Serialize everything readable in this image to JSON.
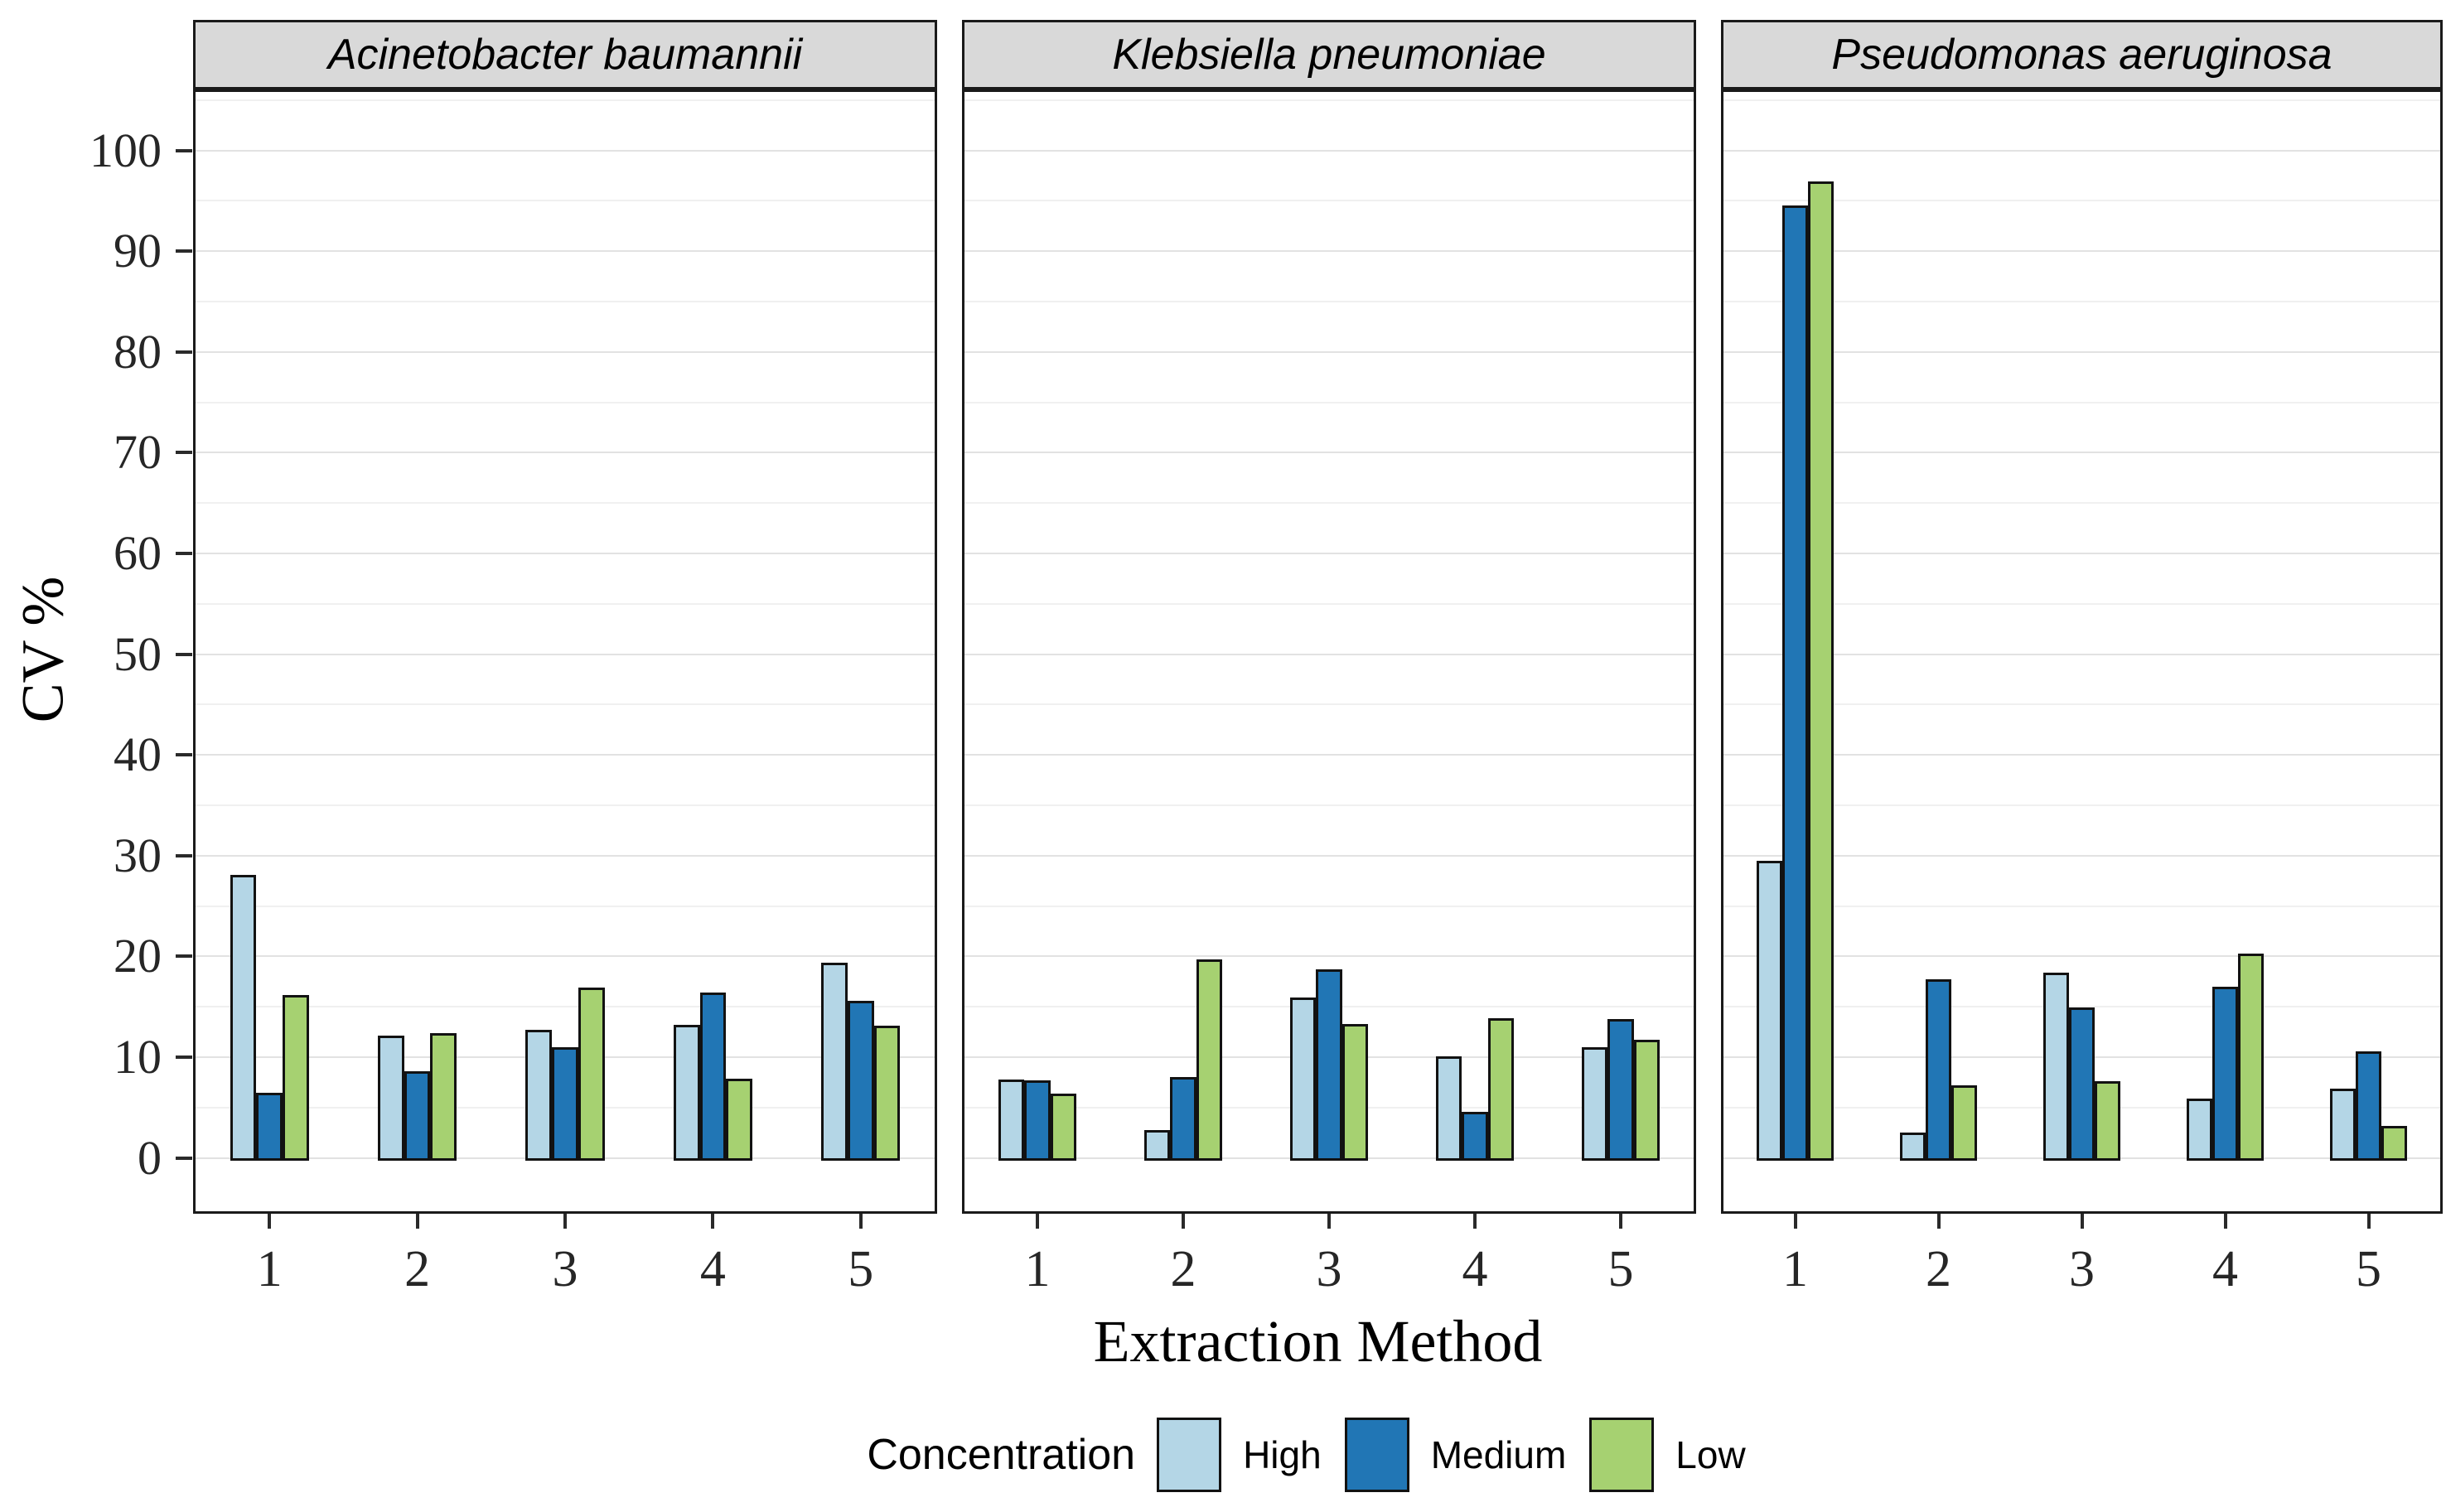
{
  "figure": {
    "y_axis_title": "CV %",
    "x_axis_title": "Extraction Method",
    "y_tick_labels": [
      "0",
      "10",
      "20",
      "30",
      "40",
      "50",
      "60",
      "70",
      "80",
      "90",
      "100"
    ]
  },
  "legend": {
    "title": "Concentration",
    "items": [
      {
        "label": "High",
        "color": "#b4d6e6"
      },
      {
        "label": "Medium",
        "color": "#2176b5"
      },
      {
        "label": "Low",
        "color": "#a6d171"
      }
    ]
  },
  "colors": {
    "strip_background": "#d9d9d9",
    "panel_border": "#1a1a1a",
    "bar_outline": "#121212",
    "grid_major": "#e2e2e2",
    "grid_minor": "#f0f0f0",
    "tick_text": "#262626"
  },
  "chart_data": {
    "type": "bar",
    "faceted": true,
    "title": "",
    "xlabel": "Extraction Method",
    "ylabel": "CV %",
    "categories": [
      "1",
      "2",
      "3",
      "4",
      "5"
    ],
    "ylim": [
      0,
      100
    ],
    "y_major_step": 10,
    "y_minor_step": 5,
    "grid": true,
    "legend_position": "bottom",
    "series_order": [
      "High",
      "Medium",
      "Low"
    ],
    "facets": [
      {
        "title": "Acinetobacter baumannii",
        "series": [
          {
            "name": "High",
            "values": [
              28.1,
              12.1,
              12.7,
              13.2,
              19.4
            ]
          },
          {
            "name": "Medium",
            "values": [
              6.5,
              8.6,
              11.0,
              16.4,
              15.6
            ]
          },
          {
            "name": "Low",
            "values": [
              16.2,
              12.4,
              16.9,
              7.9,
              13.1
            ]
          }
        ]
      },
      {
        "title": "Klebsiella pneumoniae",
        "series": [
          {
            "name": "High",
            "values": [
              7.8,
              2.8,
              15.9,
              10.1,
              11.0
            ]
          },
          {
            "name": "Medium",
            "values": [
              7.7,
              8.0,
              18.7,
              4.6,
              13.8
            ]
          },
          {
            "name": "Low",
            "values": [
              6.4,
              19.7,
              13.3,
              13.9,
              11.7
            ]
          }
        ]
      },
      {
        "title": "Pseudomonas aeruginosa",
        "series": [
          {
            "name": "High",
            "values": [
              29.5,
              2.5,
              18.4,
              5.9,
              6.9
            ]
          },
          {
            "name": "Medium",
            "values": [
              94.5,
              17.7,
              14.9,
              17.0,
              10.6
            ]
          },
          {
            "name": "Low",
            "values": [
              96.9,
              7.2,
              7.6,
              20.3,
              3.2
            ]
          }
        ]
      }
    ]
  }
}
